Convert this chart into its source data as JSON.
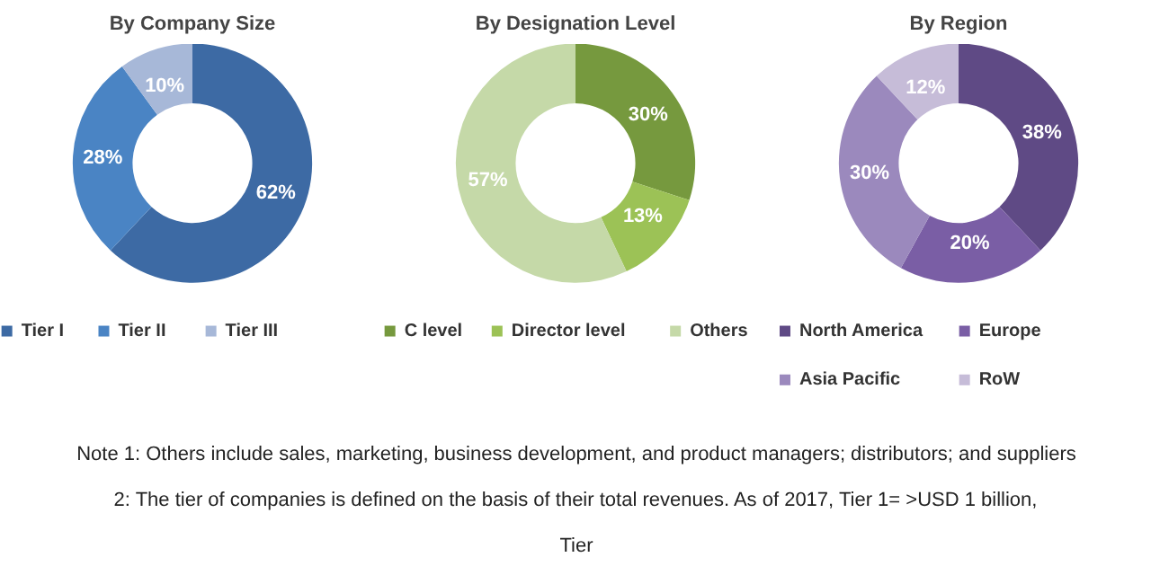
{
  "chart_data": [
    {
      "type": "donut",
      "title": "By Company Size",
      "categories": [
        "Tier I",
        "Tier II",
        "Tier III"
      ],
      "values": [
        62,
        28,
        10
      ],
      "colors": [
        "#3d6aa4",
        "#4a84c4",
        "#a7b8d8"
      ],
      "value_labels": [
        "62%",
        "28%",
        "10%"
      ],
      "legend": "bottom"
    },
    {
      "type": "donut",
      "title": "By Designation Level",
      "categories": [
        "C level",
        "Director level",
        "Others"
      ],
      "values": [
        30,
        13,
        57
      ],
      "colors": [
        "#76993e",
        "#9cc256",
        "#c5d9a8"
      ],
      "value_labels": [
        "30%",
        "13%",
        "57%"
      ],
      "legend": "bottom"
    },
    {
      "type": "donut",
      "title": "By Region",
      "categories": [
        "North America",
        "Europe",
        "Asia Pacific",
        "RoW"
      ],
      "values": [
        38,
        20,
        30,
        12
      ],
      "colors": [
        "#5f4a85",
        "#7a5ea5",
        "#9b89bd",
        "#c6bcd8"
      ],
      "value_labels": [
        "38%",
        "20%",
        "30%",
        "12%"
      ],
      "legend": "bottom",
      "annotations": [
        "Note 1: Others include sales, marketing, business development, and product managers; distributors; and suppliers",
        "2: The tier of companies is defined on the basis of their total revenues. As of 2017, Tier 1= >USD 1 billion, Tier"
      ]
    }
  ]
}
